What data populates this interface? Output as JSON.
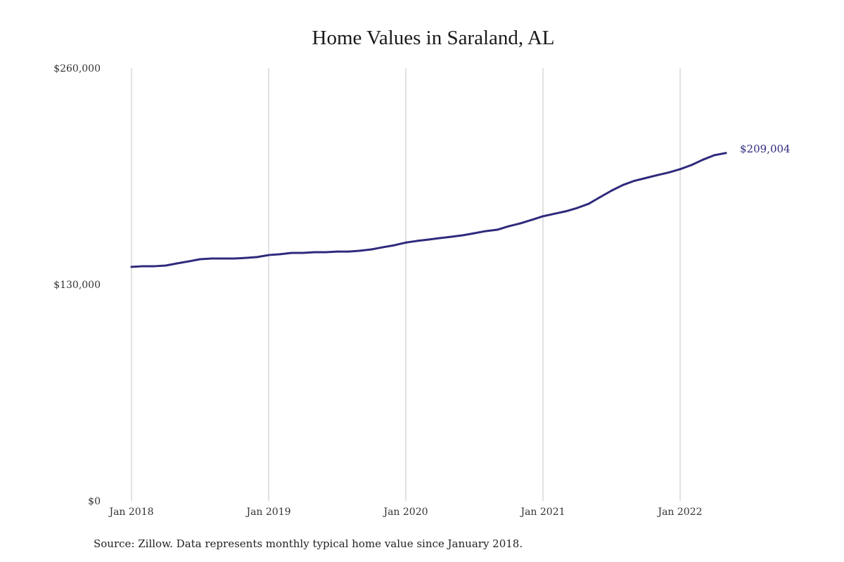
{
  "chart_data": {
    "type": "line",
    "title": "Home Values in Saraland, AL",
    "source": "Source: Zillow. Data represents monthly typical home value since January 2018.",
    "xlabel": "",
    "ylabel": "",
    "x_range": [
      "2018-01",
      "2022-05"
    ],
    "x_ticks": [
      {
        "date": "2018-01",
        "label": "Jan 2018"
      },
      {
        "date": "2019-01",
        "label": "Jan 2019"
      },
      {
        "date": "2020-01",
        "label": "Jan 2020"
      },
      {
        "date": "2021-01",
        "label": "Jan 2021"
      },
      {
        "date": "2022-01",
        "label": "Jan 2022"
      }
    ],
    "ylim": [
      0,
      260000
    ],
    "y_ticks": [
      {
        "value": 0,
        "label": "$0"
      },
      {
        "value": 130000,
        "label": "$130,000"
      },
      {
        "value": 260000,
        "label": "$260,000"
      }
    ],
    "grid": "vertical lines at x ticks",
    "end_label": "$209,004",
    "line_color": "#2f2a7c",
    "grid_color": "#c4c4c4",
    "series": [
      {
        "x": [
          "2018-01",
          "2018-02",
          "2018-03",
          "2018-04",
          "2018-05",
          "2018-06",
          "2018-07",
          "2018-08",
          "2018-09",
          "2018-10",
          "2018-11",
          "2018-12",
          "2019-01",
          "2019-02",
          "2019-03",
          "2019-04",
          "2019-05",
          "2019-06",
          "2019-07",
          "2019-08",
          "2019-09",
          "2019-10",
          "2019-11",
          "2019-12",
          "2020-01",
          "2020-02",
          "2020-03",
          "2020-04",
          "2020-05",
          "2020-06",
          "2020-07",
          "2020-08",
          "2020-09",
          "2020-10",
          "2020-11",
          "2020-12",
          "2021-01",
          "2021-02",
          "2021-03",
          "2021-04",
          "2021-05",
          "2021-06",
          "2021-07",
          "2021-08",
          "2021-09",
          "2021-10",
          "2021-11",
          "2021-12",
          "2022-01",
          "2022-02",
          "2022-03",
          "2022-04",
          "2022-05"
        ],
        "values": [
          140600,
          141000,
          141000,
          141400,
          142700,
          143900,
          145200,
          145600,
          145600,
          145600,
          146000,
          146500,
          147700,
          148200,
          149000,
          149000,
          149400,
          149400,
          149800,
          149800,
          150300,
          151100,
          152400,
          153600,
          155200,
          156200,
          157000,
          157900,
          158700,
          159600,
          160800,
          162100,
          162900,
          165000,
          166700,
          168800,
          171000,
          172500,
          174000,
          176000,
          178500,
          182500,
          186400,
          189800,
          192300,
          194000,
          195700,
          197300,
          199300,
          201800,
          205000,
          207700,
          209004
        ]
      }
    ]
  }
}
